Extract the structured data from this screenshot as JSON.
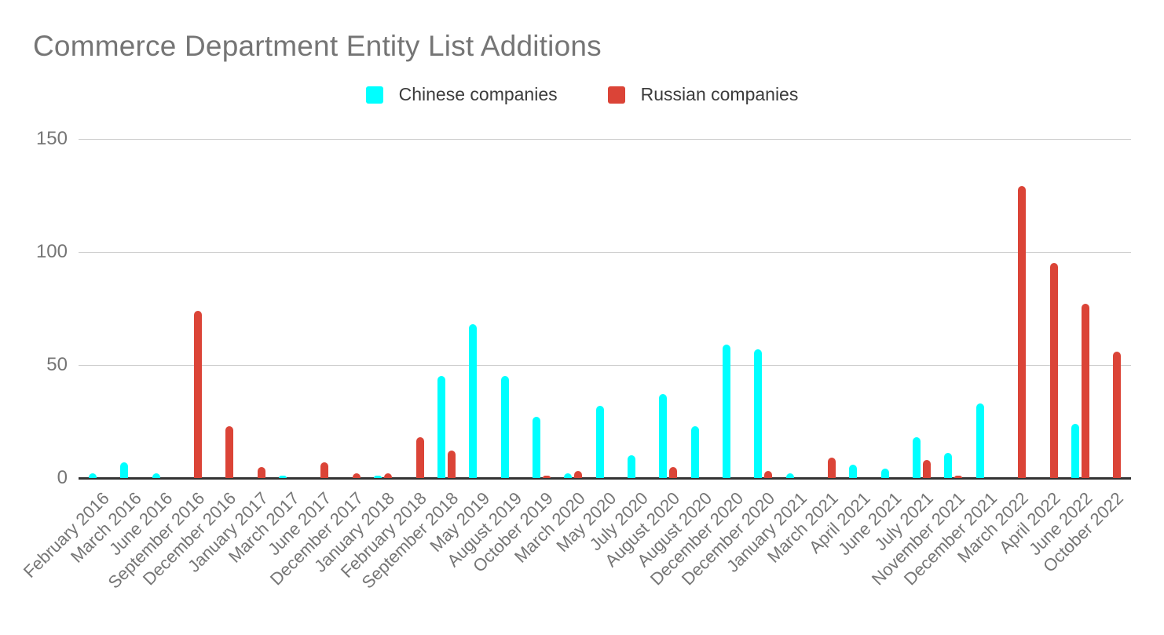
{
  "chart_data": {
    "type": "bar",
    "title": "Commerce Department Entity List Additions",
    "categories": [
      "February 2016",
      "March 2016",
      "June 2016",
      "September 2016",
      "December 2016",
      "January 2017",
      "March 2017",
      "June 2017",
      "December 2017",
      "January 2018",
      "February 2018",
      "September 2018",
      "May 2019",
      "August 2019",
      "October 2019",
      "March 2020",
      "May 2020",
      "July 2020",
      "August 2020",
      "August 2020",
      "December 2020",
      "December 2020",
      "January 2021",
      "March 2021",
      "April 2021",
      "June 2021",
      "July 2021",
      "November 2021",
      "December 2021",
      "March 2022",
      "April 2022",
      "June 2022",
      "October 2022"
    ],
    "series": [
      {
        "name": "Chinese companies",
        "color": "#00ffff",
        "values": [
          2,
          7,
          2,
          0,
          0,
          0,
          1,
          0,
          0,
          1,
          0,
          45,
          68,
          45,
          27,
          2,
          32,
          10,
          37,
          23,
          59,
          57,
          2,
          0,
          6,
          4,
          18,
          11,
          33,
          0,
          0,
          24,
          0
        ]
      },
      {
        "name": "Russian companies",
        "color": "#db4437",
        "values": [
          0,
          0,
          0,
          74,
          23,
          5,
          0,
          7,
          2,
          2,
          18,
          12,
          0,
          0,
          1,
          3,
          0,
          0,
          5,
          0,
          0,
          3,
          0,
          9,
          0,
          0,
          8,
          1,
          0,
          129,
          95,
          77,
          56
        ]
      }
    ],
    "xlabel": "",
    "ylabel": "",
    "ylim": [
      0,
      150
    ],
    "yticks": [
      0,
      50,
      100,
      150
    ],
    "grid": true,
    "legend_position": "top",
    "colors": {
      "title_text": "#757575",
      "axis_text": "#757575",
      "legend_text": "#3c3c3c",
      "gridline": "#cccccc",
      "baseline": "#333333",
      "background": "#ffffff"
    }
  }
}
